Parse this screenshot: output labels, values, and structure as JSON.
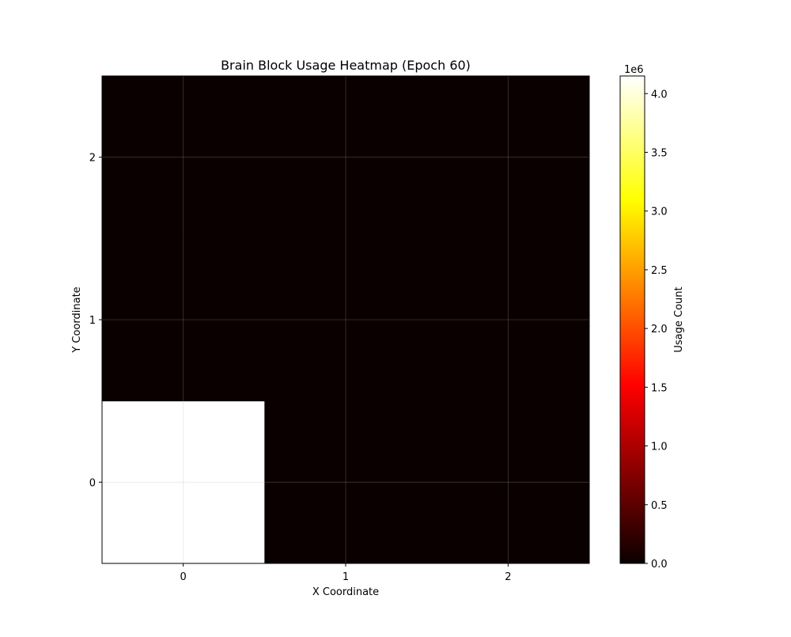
{
  "chart_data": {
    "type": "heatmap",
    "title": "Brain Block Usage Heatmap (Epoch 60)",
    "xlabel": "X Coordinate",
    "ylabel": "Y Coordinate",
    "x": [
      0,
      1,
      2
    ],
    "y": [
      0,
      1,
      2
    ],
    "x_tick_labels": [
      "0",
      "1",
      "2"
    ],
    "y_tick_labels": [
      "0",
      "1",
      "2"
    ],
    "values": [
      [
        4150000,
        0,
        0
      ],
      [
        0,
        0,
        0
      ],
      [
        0,
        0,
        0
      ]
    ],
    "xlim": [
      -0.5,
      2.5
    ],
    "ylim": [
      -0.5,
      2.5
    ],
    "grid": true,
    "colormap": "hot",
    "colorbar": {
      "label": "Usage Count",
      "range": [
        0,
        4150000
      ],
      "ticks": [
        0,
        500000,
        1000000,
        1500000,
        2000000,
        2500000,
        3000000,
        3500000,
        4000000
      ],
      "tick_labels": [
        "0.0",
        "0.5",
        "1.0",
        "1.5",
        "2.0",
        "2.5",
        "3.0",
        "3.5",
        "4.0"
      ],
      "offset_label": "1e6"
    }
  }
}
